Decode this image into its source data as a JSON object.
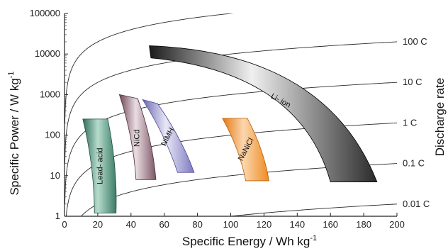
{
  "chart_data": {
    "type": "area",
    "title": "",
    "xlabel": "Specific Energy / Wh kg",
    "xlabel_sup": "-1",
    "ylabel": "Specific Power / W kg",
    "ylabel_sup": "-1",
    "y2label": "Discharge rate",
    "xlim": [
      0,
      200
    ],
    "ylim": [
      1,
      100000
    ],
    "yscale": "log",
    "grid": false,
    "x_ticks": [
      {
        "value": 0,
        "label": "0"
      },
      {
        "value": 20,
        "label": "20"
      },
      {
        "value": 40,
        "label": "40"
      },
      {
        "value": 60,
        "label": "60"
      },
      {
        "value": 80,
        "label": "80"
      },
      {
        "value": 100,
        "label": "100"
      },
      {
        "value": 120,
        "label": "120"
      },
      {
        "value": 140,
        "label": "140"
      },
      {
        "value": 160,
        "label": "160"
      },
      {
        "value": 180,
        "label": "180"
      },
      {
        "value": 200,
        "label": "200"
      }
    ],
    "y_ticks": [
      {
        "value": 1,
        "label": "1"
      },
      {
        "value": 10,
        "label": "10"
      },
      {
        "value": 100,
        "label": "100"
      },
      {
        "value": 1000,
        "label": "1000"
      },
      {
        "value": 10000,
        "label": "10000"
      },
      {
        "value": 100000,
        "label": "100000"
      }
    ],
    "discharge_rates": [
      {
        "rate": 1000,
        "label": ""
      },
      {
        "rate": 100,
        "label": "100 C"
      },
      {
        "rate": 10,
        "label": "10 C"
      },
      {
        "rate": 1,
        "label": "1 C"
      },
      {
        "rate": 0.1,
        "label": "0.1 C"
      },
      {
        "rate": 0.01,
        "label": "0.01 C"
      }
    ],
    "regions": [
      {
        "name": "Lead- acid",
        "label_rotate": -90,
        "colors": [
          "#2f6b5a",
          "#b6dccd",
          "#3c7b68"
        ],
        "dark_edge": "#1f4f40",
        "corners": {
          "top_left": [
            11,
            250
          ],
          "top_right": [
            26,
            250
          ],
          "bottom_right": [
            31,
            1.2
          ],
          "bottom_left": [
            18,
            1.2
          ]
        }
      },
      {
        "name": "NiCd",
        "label_rotate": -90,
        "colors": [
          "#6e4756",
          "#eadde2",
          "#7a5564"
        ],
        "dark_edge": "#4e3039",
        "corners": {
          "top_left": [
            33,
            1000
          ],
          "top_right": [
            44,
            800
          ],
          "bottom_right": [
            55,
            8
          ],
          "bottom_left": [
            43,
            8
          ]
        }
      },
      {
        "name": "NiMH",
        "label_rotate": -62,
        "colors": [
          "#6c68b4",
          "#e8e7f5",
          "#7c78c0"
        ],
        "dark_edge": "#4c4890",
        "corners": {
          "top_left": [
            47,
            750
          ],
          "top_right": [
            56,
            600
          ],
          "bottom_right": [
            78,
            12
          ],
          "bottom_left": [
            68,
            12
          ]
        }
      },
      {
        "name": "NaNiCl",
        "label_rotate": -62,
        "colors": [
          "#e5780f",
          "#fbd7ae",
          "#ee8a22"
        ],
        "dark_edge": "#b85c05",
        "corners": {
          "top_left": [
            95,
            260
          ],
          "top_right": [
            110,
            260
          ],
          "bottom_right": [
            123,
            7.5
          ],
          "bottom_left": [
            109,
            7.5
          ]
        }
      },
      {
        "name": "Li- ion",
        "label_rotate": 28,
        "colors": [
          "#1b1b1b",
          "#f0f0f0",
          "#2a2a2a"
        ],
        "dark_edge": "#000000",
        "corners": {
          "top_left": [
            51,
            16000
          ],
          "top_right": [
            52,
            8000
          ],
          "bottom_right": [
            188,
            7
          ],
          "bottom_left": [
            160,
            7
          ]
        }
      }
    ]
  }
}
